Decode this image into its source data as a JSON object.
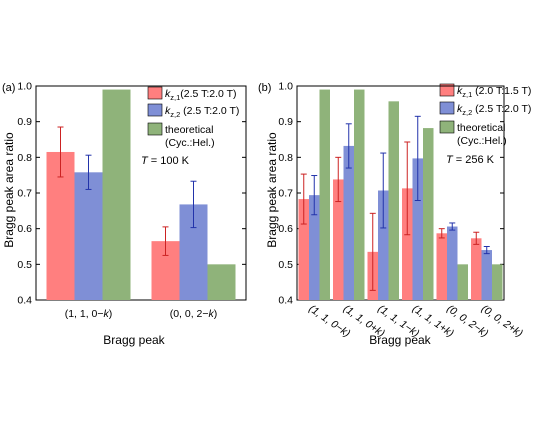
{
  "colors": {
    "red": "#ff7f7f",
    "blue": "#7f8fd6",
    "green": "#8fb37a",
    "err_red": "#cc2222",
    "err_blue": "#2233aa"
  },
  "chart_data": [
    {
      "type": "bar",
      "panel_label": "(a)",
      "annotation": "T = 100 K",
      "ylabel": "Bragg peak area ratio",
      "xlabel": "Bragg peak",
      "ylim": [
        0.4,
        1.0
      ],
      "yticks": [
        "0.4",
        "0.5",
        "0.6",
        "0.7",
        "0.8",
        "0.9",
        "1.0"
      ],
      "categories": [
        "(1, 1, 0−k)",
        "(0, 0, 2−k)"
      ],
      "series": [
        {
          "name": "kz,1 (2.5 T:2.0 T)",
          "values": [
            0.815,
            0.565
          ],
          "errors": [
            0.07,
            0.04
          ]
        },
        {
          "name": "kz,2 (2.5 T:2.0 T)",
          "values": [
            0.758,
            0.668
          ],
          "errors": [
            0.048,
            0.065
          ]
        },
        {
          "name": "theoretical (Cyc.:Hel.)",
          "values": [
            0.99,
            0.5
          ],
          "errors": [
            null,
            null
          ]
        }
      ],
      "legend": [
        "kz,1 (2.5 T:2.0 T)",
        "kz,2 (2.5 T:2.0 T)",
        "theoretical (Cyc.:Hel.)"
      ],
      "legend_position": "top-right"
    },
    {
      "type": "bar",
      "panel_label": "(b)",
      "annotation": "T = 256 K",
      "ylabel": "Bragg peak area ratio",
      "xlabel": "Bragg peak",
      "ylim": [
        0.4,
        1.0
      ],
      "yticks": [
        "0.4",
        "0.5",
        "0.6",
        "0.7",
        "0.8",
        "0.9",
        "1.0"
      ],
      "categories": [
        "(1, 1, 0−k)",
        "(1, 1, 0+k)",
        "(1, 1, 1−k)",
        "(1, 1, 1+k)",
        "(0, 0, 2−k)",
        "(0, 0, 2+k)"
      ],
      "series": [
        {
          "name": "kz,1 (2.0 T:1.5 T)",
          "values": [
            0.683,
            0.738,
            0.535,
            0.713,
            0.587,
            0.573
          ],
          "errors": [
            0.07,
            0.062,
            0.108,
            0.13,
            0.013,
            0.017
          ]
        },
        {
          "name": "kz,2 (2.5 T:2.0 T)",
          "values": [
            0.694,
            0.832,
            0.707,
            0.797,
            0.606,
            0.54
          ],
          "errors": [
            0.055,
            0.062,
            0.105,
            0.118,
            0.01,
            0.01
          ]
        },
        {
          "name": "theoretical (Cyc.:Hel.)",
          "values": [
            0.99,
            0.99,
            0.957,
            0.882,
            0.5,
            0.5
          ],
          "errors": [
            null,
            null,
            null,
            null,
            null,
            null
          ]
        }
      ],
      "legend": [
        "kz,1 (2.0 T:1.5 T)",
        "kz,2 (2.5 T:2.0 T)",
        "theoretical (Cyc.:Hel.)"
      ],
      "legend_position": "top-right"
    }
  ]
}
